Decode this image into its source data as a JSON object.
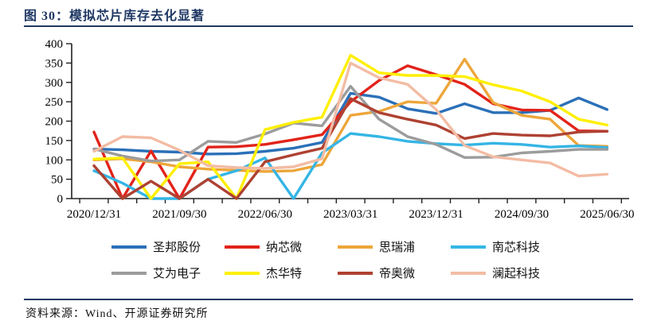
{
  "header": {
    "title": "图 30：模拟芯片库存去化显著"
  },
  "source": {
    "text": "资料来源：Wind、开源证券研究所"
  },
  "chart_data": {
    "type": "line",
    "title": "模拟芯片库存去化显著",
    "ylim": [
      0,
      400
    ],
    "ytick_step": 50,
    "ytick_labels": [
      "0",
      "50",
      "100",
      "150",
      "200",
      "250",
      "300",
      "350",
      "400"
    ],
    "grid": false,
    "legend_position": "bottom",
    "x": [
      "2020/12/31",
      "2021/03/31",
      "2021/06/30",
      "2021/09/30",
      "2021/12/31",
      "2022/03/31",
      "2022/06/30",
      "2022/09/30",
      "2022/12/31",
      "2023/03/31",
      "2023/06/30",
      "2023/09/30",
      "2023/12/31",
      "2024/03/31",
      "2024/06/30",
      "2024/09/30",
      "2024/12/31",
      "2025/03/31",
      "2025/06/30"
    ],
    "x_axis_labels_shown": [
      "2020/12/31",
      "2021/09/30",
      "2022/06/30",
      "2023/03/31",
      "2023/12/31",
      "2024/09/30",
      "2025/06/30"
    ],
    "x_label_every": 3,
    "series": [
      {
        "name": "圣邦股份",
        "color": "#2b70b8",
        "values": [
          128,
          126,
          122,
          120,
          115,
          116,
          122,
          130,
          145,
          272,
          262,
          232,
          220,
          245,
          222,
          222,
          228,
          260,
          230
        ]
      },
      {
        "name": "纳芯微",
        "color": "#e2231a",
        "values": [
          172,
          0,
          123,
          0,
          133,
          134,
          140,
          152,
          165,
          250,
          305,
          343,
          320,
          295,
          245,
          229,
          228,
          175,
          174
        ]
      },
      {
        "name": "思瑞浦",
        "color": "#eda63a",
        "values": [
          100,
          103,
          95,
          82,
          76,
          73,
          70,
          72,
          88,
          215,
          225,
          250,
          246,
          360,
          248,
          215,
          205,
          137,
          135
        ]
      },
      {
        "name": "南芯科技",
        "color": "#35b5e5",
        "values": [
          72,
          40,
          0,
          0,
          50,
          72,
          105,
          0,
          118,
          168,
          160,
          148,
          142,
          138,
          143,
          140,
          133,
          136,
          132
        ]
      },
      {
        "name": "艾为电子",
        "color": "#9c9c9c",
        "values": [
          128,
          110,
          97,
          100,
          148,
          145,
          167,
          195,
          188,
          290,
          205,
          160,
          140,
          106,
          107,
          118,
          122,
          127,
          127
        ]
      },
      {
        "name": "杰华特",
        "color": "#ffef00",
        "values": [
          102,
          105,
          0,
          90,
          95,
          0,
          178,
          197,
          210,
          370,
          325,
          318,
          318,
          315,
          294,
          278,
          250,
          205,
          190
        ]
      },
      {
        "name": "帝奥微",
        "color": "#ae4132",
        "values": [
          85,
          0,
          45,
          0,
          50,
          0,
          95,
          113,
          130,
          258,
          222,
          205,
          190,
          155,
          168,
          164,
          162,
          172,
          174
        ]
      },
      {
        "name": "澜起科技",
        "color": "#f3bca4",
        "values": [
          122,
          160,
          157,
          125,
          85,
          80,
          78,
          82,
          103,
          350,
          312,
          295,
          230,
          137,
          108,
          100,
          92,
          58,
          63
        ]
      }
    ],
    "legend_order": [
      "圣邦股份",
      "纳芯微",
      "思瑞浦",
      "南芯科技",
      "艾为电子",
      "杰华特",
      "帝奥微",
      "澜起科技"
    ]
  }
}
